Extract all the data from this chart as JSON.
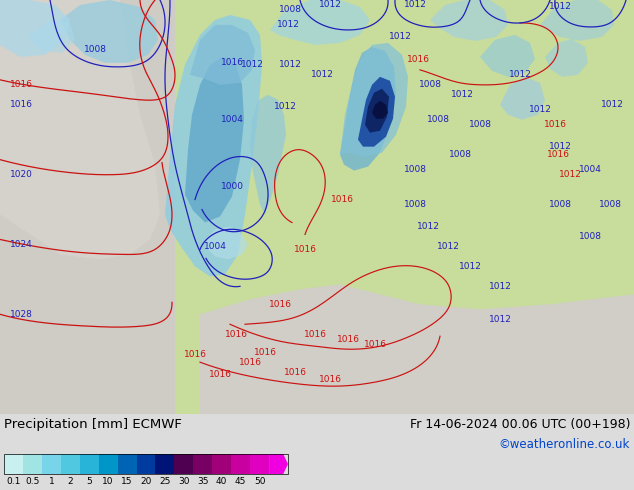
{
  "title_left": "Precipitation [mm] ECMWF",
  "title_right": "Fr 14-06-2024 00.06 UTC (00+198)",
  "credit": "©weatheronline.co.uk",
  "colorbar_labels": [
    "0.1",
    "0.5",
    "1",
    "2",
    "5",
    "10",
    "15",
    "20",
    "25",
    "30",
    "35",
    "40",
    "45",
    "50"
  ],
  "colorbar_colors": [
    "#c8f0f0",
    "#a0e4e4",
    "#78d4e8",
    "#50c8e0",
    "#28b4d8",
    "#0096c8",
    "#0064b4",
    "#003ca0",
    "#001478",
    "#500050",
    "#780064",
    "#a00078",
    "#c800a0",
    "#e000c0",
    "#f000e0"
  ],
  "bg_color": "#dcdcdc",
  "land_color": "#d0e8a0",
  "ocean_color": "#dce8dc",
  "atlantic_color": "#d4d4cc",
  "precip_light": "#a0dce8",
  "precip_mid": "#60b8d8",
  "precip_dark": "#2060b0",
  "precip_vdark": "#102878",
  "map_bg": "#c8d8c0"
}
